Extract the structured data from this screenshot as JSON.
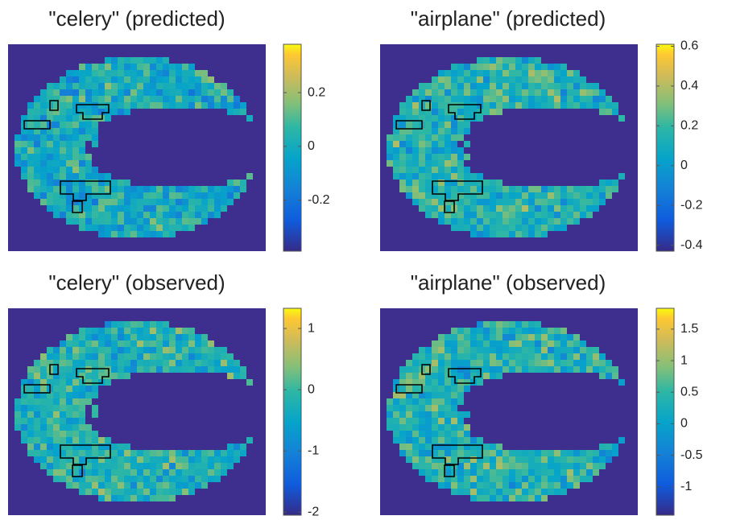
{
  "chart_data": [
    {
      "type": "heatmap",
      "title": "\"celery\" (predicted)",
      "colormap": "parula",
      "clim": [
        -0.39,
        0.38
      ],
      "cticks": [
        -0.2,
        0,
        0.2
      ]
    },
    {
      "type": "heatmap",
      "title": "\"airplane\" (predicted)",
      "colormap": "parula",
      "clim": [
        -0.43,
        0.61
      ],
      "cticks": [
        -0.4,
        -0.2,
        0,
        0.2,
        0.4,
        0.6
      ]
    },
    {
      "type": "heatmap",
      "title": "\"celery\" (observed)",
      "colormap": "parula",
      "clim": [
        -2.05,
        1.33
      ],
      "cticks": [
        -2,
        -1,
        0,
        1
      ]
    },
    {
      "type": "heatmap",
      "title": "\"airplane\" (observed)",
      "colormap": "parula",
      "clim": [
        -1.45,
        1.83
      ],
      "cticks": [
        -1,
        -0.5,
        0,
        0.5,
        1,
        1.5
      ]
    }
  ]
}
